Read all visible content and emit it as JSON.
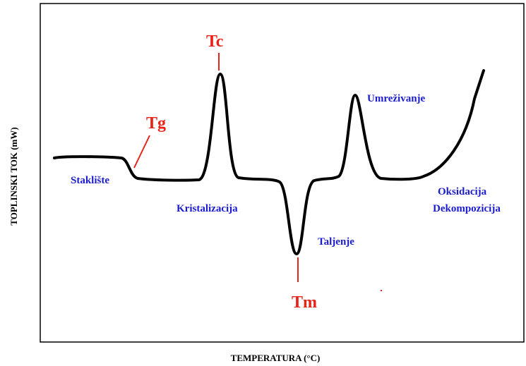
{
  "axes": {
    "y_label": "TOPLINSKI TOK (mW)",
    "x_label": "TEMPERATURA (°C)"
  },
  "markers": {
    "tg": "Tg",
    "tc": "Tc",
    "tm": "Tm"
  },
  "annotations": {
    "glass": "Staklište",
    "crystallization": "Kristalizacija",
    "melting": "Taljenje",
    "crosslinking": "Umreživanje",
    "oxidation": "Oksidacija",
    "decomposition": "Dekompozicija"
  }
}
